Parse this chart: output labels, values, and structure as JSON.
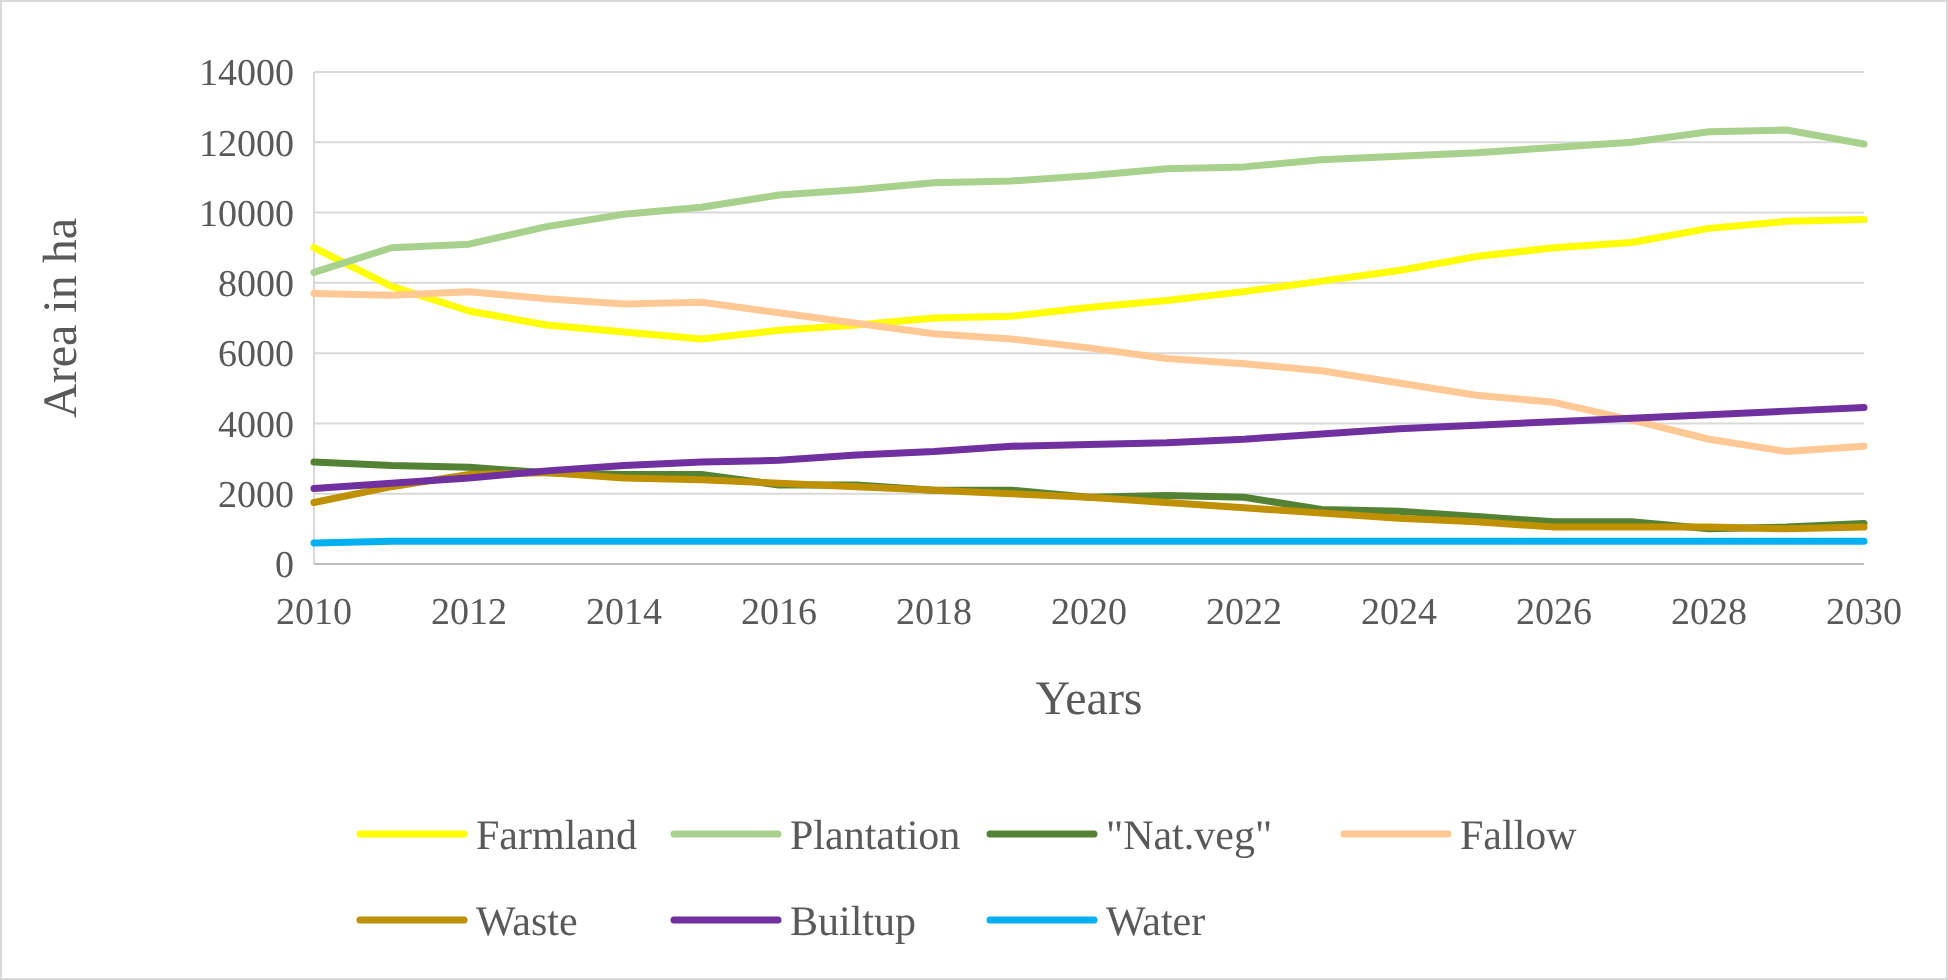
{
  "chart_data": {
    "type": "line",
    "xlabel": "Years",
    "ylabel": "Area in ha",
    "x": [
      2010,
      2011,
      2012,
      2013,
      2014,
      2015,
      2016,
      2017,
      2018,
      2019,
      2020,
      2021,
      2022,
      2023,
      2024,
      2025,
      2026,
      2027,
      2028,
      2029,
      2030
    ],
    "xlim": [
      2010,
      2030
    ],
    "xticks": [
      2010,
      2012,
      2014,
      2016,
      2018,
      2020,
      2022,
      2024,
      2026,
      2028,
      2030
    ],
    "ylim": [
      0,
      14000
    ],
    "yticks": [
      0,
      2000,
      4000,
      6000,
      8000,
      10000,
      12000,
      14000
    ],
    "grid": "y",
    "legend": "bottom",
    "marker": "none",
    "series": [
      {
        "name": "Farmland",
        "color": "#ffff00",
        "values": [
          9000,
          7900,
          7200,
          6800,
          6600,
          6400,
          6650,
          6800,
          7000,
          7050,
          7300,
          7500,
          7750,
          8050,
          8350,
          8750,
          9000,
          9150,
          9550,
          9750,
          9800
        ]
      },
      {
        "name": "Plantation",
        "color": "#a9d18e",
        "values": [
          8300,
          9000,
          9100,
          9600,
          9950,
          10150,
          10500,
          10650,
          10850,
          10900,
          11050,
          11250,
          11300,
          11500,
          11600,
          11700,
          11850,
          12000,
          12300,
          12350,
          11950
        ]
      },
      {
        "name": "\"Nat.veg\"",
        "color": "#548235",
        "values": [
          2900,
          2800,
          2750,
          2600,
          2550,
          2550,
          2250,
          2250,
          2100,
          2100,
          1900,
          1950,
          1900,
          1550,
          1500,
          1350,
          1200,
          1200,
          1000,
          1050,
          1150
        ]
      },
      {
        "name": "Fallow",
        "color": "#ffc894",
        "values": [
          7700,
          7650,
          7750,
          7550,
          7400,
          7450,
          7150,
          6850,
          6550,
          6400,
          6150,
          5850,
          5700,
          5500,
          5150,
          4800,
          4600,
          4100,
          3550,
          3200,
          3350
        ]
      },
      {
        "name": "Waste",
        "color": "#bf9000",
        "values": [
          1750,
          2200,
          2550,
          2600,
          2450,
          2400,
          2300,
          2200,
          2100,
          2000,
          1900,
          1750,
          1600,
          1450,
          1300,
          1200,
          1050,
          1050,
          1050,
          1000,
          1050
        ]
      },
      {
        "name": "Builtup",
        "color": "#7030a0",
        "values": [
          2150,
          2300,
          2450,
          2650,
          2800,
          2900,
          2950,
          3100,
          3200,
          3350,
          3400,
          3450,
          3550,
          3700,
          3850,
          3950,
          4050,
          4150,
          4250,
          4350,
          4450
        ]
      },
      {
        "name": "Water",
        "color": "#00b0f0",
        "values": [
          600,
          650,
          650,
          650,
          650,
          650,
          650,
          650,
          650,
          650,
          650,
          650,
          650,
          650,
          650,
          650,
          650,
          650,
          650,
          650,
          650
        ]
      }
    ]
  }
}
